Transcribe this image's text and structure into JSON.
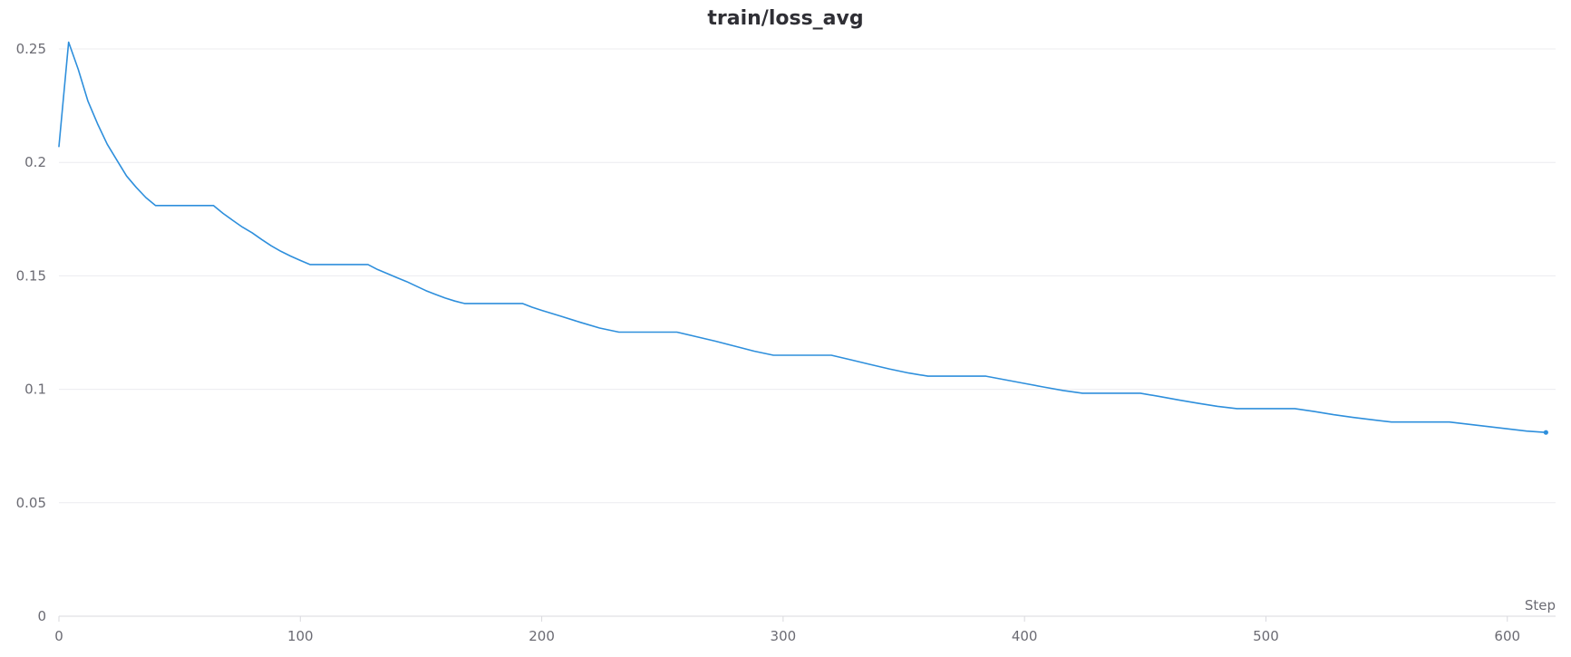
{
  "chart_data": {
    "type": "line",
    "title": "train/loss_avg",
    "xlabel": "Step",
    "ylabel": "",
    "xlim": [
      0,
      620
    ],
    "ylim": [
      0,
      0.25
    ],
    "xticks": [
      0,
      100,
      200,
      300,
      400,
      500,
      600
    ],
    "xtick_labels": [
      "0",
      "100",
      "200",
      "300",
      "400",
      "500",
      "600"
    ],
    "yticks": [
      0,
      0.05,
      0.1,
      0.15,
      0.2,
      0.25
    ],
    "ytick_labels": [
      "0",
      "0.05",
      "0.1",
      "0.15",
      "0.2",
      "0.25"
    ],
    "grid": true,
    "legend": "none",
    "series": [
      {
        "color": "#2e8fdc",
        "x": [
          0,
          4,
          8,
          12,
          16,
          20,
          24,
          28,
          32,
          36,
          40,
          48,
          56,
          64,
          68,
          72,
          76,
          80,
          84,
          88,
          92,
          96,
          100,
          104,
          112,
          120,
          128,
          132,
          136,
          140,
          144,
          148,
          152,
          156,
          160,
          164,
          168,
          176,
          184,
          192,
          196,
          200,
          208,
          216,
          224,
          232,
          240,
          248,
          256,
          264,
          272,
          280,
          288,
          296,
          304,
          312,
          320,
          328,
          336,
          344,
          352,
          360,
          368,
          376,
          384,
          392,
          400,
          408,
          416,
          424,
          432,
          440,
          448,
          456,
          464,
          472,
          480,
          488,
          496,
          504,
          512,
          520,
          528,
          536,
          544,
          552,
          560,
          568,
          576,
          584,
          592,
          600,
          608,
          616
        ],
        "y": [
          0.207,
          0.253,
          0.241,
          0.227,
          0.217,
          0.208,
          0.201,
          0.194,
          0.189,
          0.1845,
          0.181,
          0.181,
          0.181,
          0.181,
          0.1775,
          0.1745,
          0.1715,
          0.169,
          0.166,
          0.1632,
          0.1608,
          0.1587,
          0.1568,
          0.155,
          0.155,
          0.155,
          0.155,
          0.1528,
          0.151,
          0.1492,
          0.1475,
          0.1455,
          0.1435,
          0.1418,
          0.1402,
          0.1389,
          0.1378,
          0.1378,
          0.1378,
          0.1378,
          0.1362,
          0.1348,
          0.1322,
          0.1295,
          0.127,
          0.1252,
          0.1252,
          0.1252,
          0.1252,
          0.1232,
          0.1212,
          0.119,
          0.1168,
          0.115,
          0.115,
          0.115,
          0.115,
          0.113,
          0.111,
          0.109,
          0.1072,
          0.1058,
          0.1058,
          0.1058,
          0.1058,
          0.1042,
          0.1026,
          0.101,
          0.0995,
          0.0983,
          0.0983,
          0.0983,
          0.0983,
          0.0968,
          0.0953,
          0.0938,
          0.0925,
          0.0915,
          0.0915,
          0.0915,
          0.0915,
          0.0902,
          0.0888,
          0.0876,
          0.0866,
          0.0856,
          0.0856,
          0.0856,
          0.0856,
          0.0846,
          0.0836,
          0.0826,
          0.0816,
          0.081
        ]
      }
    ]
  }
}
